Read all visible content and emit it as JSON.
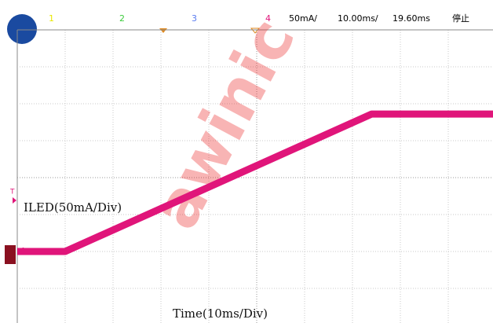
{
  "header": {
    "channels": [
      "1",
      "2",
      "3",
      "4"
    ],
    "channel_colors": [
      "#e8e800",
      "#3ccc3c",
      "#5a7cf0",
      "#e0157a"
    ],
    "scale": "50mA/",
    "timebase": "10.00ms/",
    "delay": "19.60ms",
    "status": "停止"
  },
  "chart_data": {
    "type": "line",
    "x_label": "Time(10ms/Div)",
    "y_label": "ILED(50mA/Div)",
    "watermark": "awinic",
    "channel_marker": "4",
    "trigger_marker": "T",
    "x": [
      0,
      10,
      74,
      100
    ],
    "values": [
      0,
      0,
      186,
      186
    ],
    "color": "#e0157a",
    "xlim": [
      0,
      100
    ],
    "ylim": [
      -100,
      300
    ],
    "xticks": [
      0,
      10,
      20,
      30,
      40,
      50,
      60,
      70,
      80,
      90,
      100
    ],
    "yticks": [
      -100,
      -50,
      0,
      50,
      100,
      150,
      200,
      250,
      300
    ],
    "grid": true
  }
}
